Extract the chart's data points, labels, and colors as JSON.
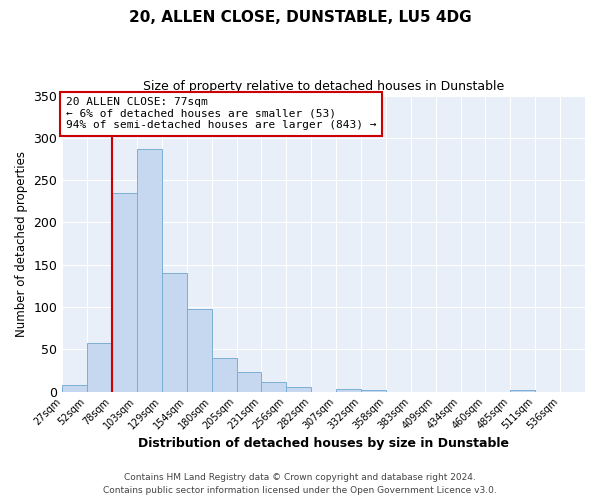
{
  "title": "20, ALLEN CLOSE, DUNSTABLE, LU5 4DG",
  "subtitle": "Size of property relative to detached houses in Dunstable",
  "xlabel": "Distribution of detached houses by size in Dunstable",
  "ylabel": "Number of detached properties",
  "bar_values": [
    8,
    58,
    235,
    287,
    140,
    98,
    40,
    23,
    11,
    5,
    0,
    3,
    2,
    0,
    0,
    0,
    0,
    0,
    2,
    0
  ],
  "bin_labels": [
    "27sqm",
    "52sqm",
    "78sqm",
    "103sqm",
    "129sqm",
    "154sqm",
    "180sqm",
    "205sqm",
    "231sqm",
    "256sqm",
    "282sqm",
    "307sqm",
    "332sqm",
    "358sqm",
    "383sqm",
    "409sqm",
    "434sqm",
    "460sqm",
    "485sqm",
    "511sqm",
    "536sqm"
  ],
  "ylim": [
    0,
    350
  ],
  "yticks": [
    0,
    50,
    100,
    150,
    200,
    250,
    300,
    350
  ],
  "bar_color": "#c5d8f0",
  "bar_edge_color": "#7bafd4",
  "vline_x_index": 2,
  "vline_color": "#cc0000",
  "annotation_line1": "20 ALLEN CLOSE: 77sqm",
  "annotation_line2": "← 6% of detached houses are smaller (53)",
  "annotation_line3": "94% of semi-detached houses are larger (843) →",
  "annotation_box_color": "#ffffff",
  "annotation_box_edge_color": "#cc0000",
  "bg_color": "#e8eff9",
  "footer_line1": "Contains HM Land Registry data © Crown copyright and database right 2024.",
  "footer_line2": "Contains public sector information licensed under the Open Government Licence v3.0."
}
